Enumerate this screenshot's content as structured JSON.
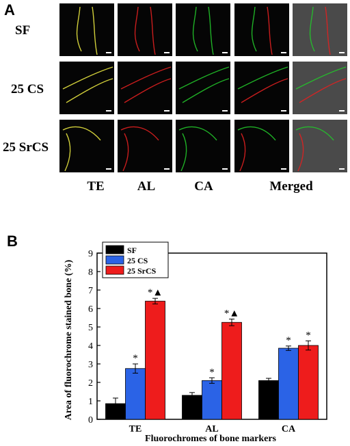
{
  "panelA": {
    "letter": "A",
    "rows": [
      "SF",
      "25 CS",
      "25 SrCS"
    ],
    "columns": [
      "TE",
      "AL",
      "CA",
      "Merged"
    ]
  },
  "panelB": {
    "letter": "B"
  },
  "colors": {
    "SF": "#000000",
    "25 CS": "#2b63e6",
    "25 SrCS": "#ee1c1c",
    "TE_stain": "#e8e640",
    "AL_stain": "#e02020",
    "CA_stain": "#22c42a"
  },
  "chart_data": {
    "type": "bar",
    "categories": [
      "TE",
      "AL",
      "CA"
    ],
    "series": [
      {
        "name": "SF",
        "values": [
          0.85,
          1.3,
          2.1
        ],
        "errors": [
          0.3,
          0.15,
          0.12
        ]
      },
      {
        "name": "25 CS",
        "values": [
          2.75,
          2.1,
          3.85
        ],
        "errors": [
          0.25,
          0.15,
          0.12
        ]
      },
      {
        "name": "25 SrCS",
        "values": [
          6.4,
          5.25,
          4.0
        ],
        "errors": [
          0.15,
          0.18,
          0.25
        ]
      }
    ],
    "annotations": [
      {
        "category": "TE",
        "series": "25 CS",
        "text": "*"
      },
      {
        "category": "TE",
        "series": "25 SrCS",
        "text": "*▲"
      },
      {
        "category": "AL",
        "series": "25 CS",
        "text": "*"
      },
      {
        "category": "AL",
        "series": "25 SrCS",
        "text": "*▲"
      },
      {
        "category": "CA",
        "series": "25 CS",
        "text": "*"
      },
      {
        "category": "CA",
        "series": "25 SrCS",
        "text": "*"
      }
    ],
    "xlabel": "Fluorochromes of bone markers",
    "ylabel": "Area of fluorochrome stained bone (%)",
    "ylim": [
      0,
      9
    ],
    "yticks": [
      "0",
      "1",
      "2",
      "3",
      "4",
      "5",
      "6",
      "7",
      "8",
      "9"
    ],
    "legend_position": "top-left"
  }
}
